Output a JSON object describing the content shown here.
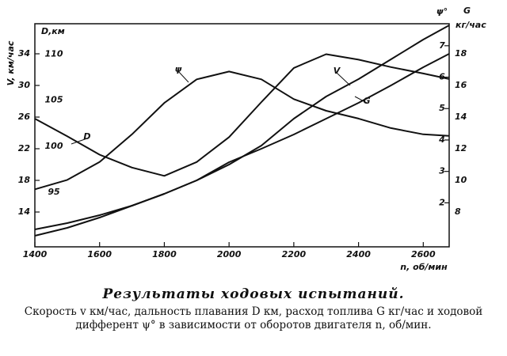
{
  "chart_data": {
    "type": "line",
    "x": [
      1400,
      1500,
      1600,
      1700,
      1800,
      1900,
      2000,
      2100,
      2200,
      2300,
      2400,
      2500,
      2600,
      2680
    ],
    "xlim": [
      1400,
      2680
    ],
    "xticks": [
      1400,
      1600,
      1800,
      2000,
      2200,
      2400,
      2600
    ],
    "x_label": "n, об/мин",
    "y_axes": [
      {
        "label": "V, км/час",
        "lim": [
          9.6,
          37.8
        ],
        "ticks": [
          14,
          18,
          22,
          26,
          30,
          34
        ],
        "side": "left"
      },
      {
        "label": "D,км",
        "lim": [
          89.1,
          113.3
        ],
        "ticks": [
          95,
          100,
          105,
          110
        ],
        "side": "left-inner"
      },
      {
        "label": "ψ°",
        "lim": [
          0.6,
          7.7
        ],
        "ticks": [
          2,
          3,
          4,
          5,
          6,
          7
        ],
        "side": "right-inner"
      },
      {
        "label": "G",
        "unit": "кг/час",
        "lim": [
          5.8,
          19.9
        ],
        "ticks": [
          8,
          10,
          12,
          14,
          16,
          18
        ],
        "side": "right"
      }
    ],
    "series": [
      {
        "name": "V",
        "color": "#111111",
        "axis": 0,
        "values": [
          11.8,
          12.6,
          13.6,
          14.8,
          16.3,
          18.0,
          20.0,
          22.4,
          25.8,
          28.6,
          30.8,
          33.3,
          35.8,
          37.6
        ]
      },
      {
        "name": "D",
        "color": "#111111",
        "axis": 1,
        "values": [
          103.0,
          101.1,
          99.1,
          97.7,
          96.8,
          98.3,
          101.0,
          104.8,
          108.5,
          110.0,
          109.4,
          108.6,
          107.9,
          107.3
        ]
      },
      {
        "name": "ψ",
        "color": "#111111",
        "axis": 2,
        "values": [
          2.43,
          2.73,
          3.3,
          4.18,
          5.18,
          5.93,
          6.18,
          5.93,
          5.3,
          4.93,
          4.68,
          4.38,
          4.18,
          4.13
        ]
      },
      {
        "name": "G",
        "color": "#111111",
        "axis": 3,
        "values": [
          6.5,
          7.0,
          7.65,
          8.4,
          9.15,
          10.0,
          11.15,
          12.0,
          12.9,
          13.9,
          14.9,
          16.0,
          17.15,
          18.0
        ]
      }
    ],
    "caption_title": "Результаты ходовых испытаний.",
    "caption": "Скорость v км/час, дальность плавания D км, расход топлива G кг/час и ходовой дифферент ψ° в зависимости от оборотов двигателя n, об/мин."
  }
}
